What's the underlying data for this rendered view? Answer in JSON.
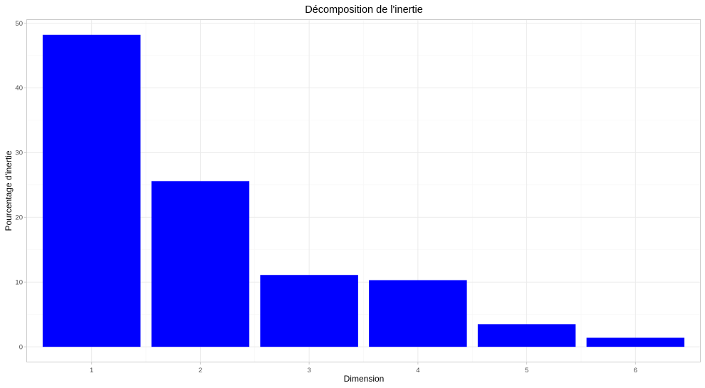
{
  "chart_data": {
    "type": "bar",
    "title": "Décomposition de l'inertie",
    "xlabel": "Dimension",
    "ylabel": "Pourcentage d'inertie",
    "categories": [
      "1",
      "2",
      "3",
      "4",
      "5",
      "6"
    ],
    "values": [
      48.2,
      25.6,
      11.1,
      10.3,
      3.5,
      1.4
    ],
    "ylim": [
      -2.4,
      50.6
    ],
    "yticks": [
      "0",
      "10",
      "20",
      "30",
      "40",
      "50"
    ],
    "grid": true,
    "legend": "none",
    "colors": {
      "bar": "#0000FF",
      "panel_border": "#cccccc",
      "grid_major": "#ebebeb",
      "grid_minor": "#f5f5f5"
    }
  }
}
